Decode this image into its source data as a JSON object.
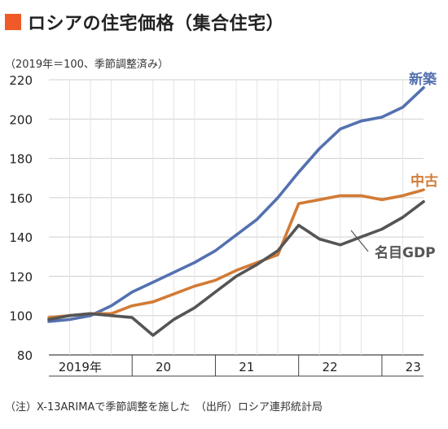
{
  "title": "ロシアの住宅価格（集合住宅）",
  "title_marker_color": "#f05a28",
  "unit_note": "（2019年＝100、季節調整済み）",
  "footnote": "（注）X-13ARIMAで季節調整を施した　（出所）ロシア連邦統計局",
  "chart_data": {
    "type": "line",
    "ylim": [
      80,
      220
    ],
    "yticks": [
      80,
      100,
      120,
      140,
      160,
      180,
      200,
      220
    ],
    "xlim": [
      0,
      18
    ],
    "year_labels": [
      {
        "label": "2019年",
        "center": 1.5
      },
      {
        "label": "20",
        "center": 5.5
      },
      {
        "label": "21",
        "center": 9.5
      },
      {
        "label": "22",
        "center": 13.5
      },
      {
        "label": "23",
        "center": 17.5
      }
    ],
    "year_boundaries": [
      4,
      8,
      12,
      16
    ],
    "quarter_ticks": [
      1,
      2,
      3,
      5,
      6,
      7,
      9,
      10,
      11,
      13,
      14,
      15,
      17
    ],
    "grid": true,
    "series": [
      {
        "name": "新築",
        "color": "#5471b0",
        "x": [
          0,
          1,
          2,
          3,
          4,
          5,
          6,
          7,
          8,
          9,
          10,
          11,
          12,
          13,
          14,
          15,
          16,
          17,
          18
        ],
        "values": [
          97,
          98,
          100,
          105,
          112,
          117,
          122,
          127,
          133,
          141,
          149,
          160,
          173,
          185,
          195,
          199,
          201,
          206,
          216
        ]
      },
      {
        "name": "中古",
        "color": "#d27b36",
        "x": [
          0,
          1,
          2,
          3,
          4,
          5,
          6,
          7,
          8,
          9,
          10,
          11,
          12,
          13,
          14,
          15,
          16,
          17,
          18
        ],
        "values": [
          99,
          100,
          101,
          101,
          105,
          107,
          111,
          115,
          118,
          123,
          127,
          131,
          157,
          159,
          161,
          161,
          159,
          161,
          164
        ]
      },
      {
        "name": "名目GDP",
        "color": "#555555",
        "x": [
          0,
          1,
          2,
          3,
          4,
          5,
          6,
          7,
          8,
          9,
          10,
          11,
          12,
          13,
          14,
          15,
          16,
          17,
          18
        ],
        "values": [
          98,
          100,
          101,
          100,
          99,
          90,
          98,
          104,
          112,
          120,
          126,
          133,
          146,
          139,
          136,
          140,
          144,
          150,
          158
        ]
      }
    ]
  }
}
